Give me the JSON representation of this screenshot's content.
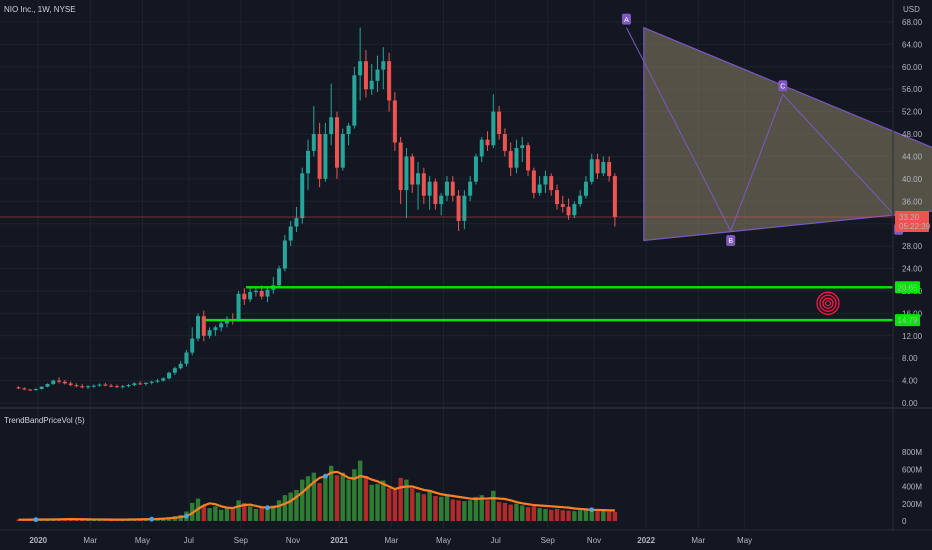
{
  "header": {
    "symbol_title": "NIO Inc., 1W, NYSE",
    "currency": "USD"
  },
  "colors": {
    "background": "#131722",
    "up": "#26a69a",
    "down": "#ef5350",
    "triangle_fill": "#8a8466",
    "triangle_stroke": "#7e57c2",
    "support_line": "#00e600",
    "vol_ma": "#ff7f27",
    "vol_up": "#2e7d32",
    "vol_down": "#b22b2b",
    "marker": "#ff1744"
  },
  "price_axis": {
    "ticks": [
      "68.00",
      "64.00",
      "60.00",
      "56.00",
      "52.00",
      "48.00",
      "44.00",
      "40.00",
      "36.00",
      "32.00",
      "28.00",
      "24.00",
      "20.00",
      "16.00",
      "12.00",
      "8.00",
      "4.00",
      "0.00"
    ],
    "current_price": "33.20",
    "countdown": "05:22:39",
    "current_value": 33.2
  },
  "volume_panel": {
    "title": "TrendBandPriceVol (5)",
    "ticks": [
      "800",
      "600",
      "400",
      "200",
      "0"
    ]
  },
  "time_axis": {
    "labels": [
      "2020",
      "Mar",
      "May",
      "Jul",
      "Sep",
      "Nov",
      "2021",
      "Mar",
      "May",
      "Jul",
      "Sep",
      "Nov",
      "2022",
      "Mar",
      "May"
    ]
  },
  "support_levels": [
    {
      "value": 20.65,
      "label": "20.65"
    },
    {
      "value": 14.79,
      "label": "14.79"
    }
  ],
  "pattern_points": [
    {
      "label": "A",
      "week": 105,
      "value": 66.99
    },
    {
      "label": "B",
      "week": 123,
      "value": 30.7
    },
    {
      "label": "C",
      "week": 132,
      "value": 55.1
    },
    {
      "label": "D",
      "week": 152,
      "value": 32.7
    }
  ],
  "triangle": {
    "apex_week": 105,
    "apex_value": 66.99,
    "bottom_left_value": 29,
    "end_week": 176,
    "end_value": 36.5
  },
  "chart_data": {
    "type": "candlestick",
    "title": "NIO Inc., 1W, NYSE",
    "interval": "1W",
    "ylim": [
      0,
      70
    ],
    "x_start": "2019-12-16",
    "candles": [
      [
        2.8,
        3.0,
        2.5,
        2.6
      ],
      [
        2.6,
        2.8,
        2.3,
        2.4
      ],
      [
        2.4,
        2.5,
        2.2,
        2.3
      ],
      [
        2.3,
        2.6,
        2.2,
        2.5
      ],
      [
        2.5,
        3.0,
        2.4,
        2.9
      ],
      [
        2.9,
        3.5,
        2.8,
        3.4
      ],
      [
        3.4,
        4.2,
        3.2,
        4.0
      ],
      [
        4.0,
        4.6,
        3.5,
        3.8
      ],
      [
        3.8,
        4.1,
        3.3,
        3.5
      ],
      [
        3.5,
        3.8,
        3.0,
        3.2
      ],
      [
        3.2,
        3.5,
        2.8,
        3.0
      ],
      [
        3.0,
        3.4,
        2.6,
        2.8
      ],
      [
        2.8,
        3.2,
        2.5,
        3.0
      ],
      [
        3.0,
        3.3,
        2.7,
        3.1
      ],
      [
        3.1,
        3.5,
        2.9,
        3.3
      ],
      [
        3.3,
        3.6,
        3.0,
        3.1
      ],
      [
        3.1,
        3.4,
        2.8,
        3.0
      ],
      [
        3.0,
        3.3,
        2.7,
        2.9
      ],
      [
        2.9,
        3.2,
        2.6,
        3.0
      ],
      [
        3.0,
        3.4,
        2.8,
        3.2
      ],
      [
        3.2,
        3.7,
        3.0,
        3.5
      ],
      [
        3.5,
        3.9,
        3.2,
        3.4
      ],
      [
        3.4,
        3.7,
        3.1,
        3.6
      ],
      [
        3.6,
        4.0,
        3.3,
        3.8
      ],
      [
        3.8,
        4.3,
        3.6,
        4.0
      ],
      [
        4.0,
        4.6,
        3.8,
        4.4
      ],
      [
        4.4,
        5.6,
        4.2,
        5.4
      ],
      [
        5.4,
        6.5,
        5.0,
        6.2
      ],
      [
        6.2,
        7.5,
        6.0,
        7.0
      ],
      [
        7.0,
        9.5,
        6.5,
        9.0
      ],
      [
        9.0,
        13.5,
        8.5,
        11.5
      ],
      [
        11.5,
        16.0,
        11.0,
        15.5
      ],
      [
        15.5,
        16.5,
        11.0,
        12.0
      ],
      [
        12.0,
        13.5,
        11.5,
        13.0
      ],
      [
        13.0,
        13.8,
        12.0,
        13.5
      ],
      [
        13.5,
        14.5,
        12.8,
        14.2
      ],
      [
        14.2,
        15.5,
        13.5,
        15.0
      ],
      [
        15.0,
        16.0,
        14.0,
        14.8
      ],
      [
        14.8,
        20.0,
        14.5,
        19.5
      ],
      [
        19.5,
        20.5,
        17.5,
        18.5
      ],
      [
        18.5,
        20.5,
        18.0,
        19.8
      ],
      [
        19.8,
        20.8,
        19.0,
        20.0
      ],
      [
        20.0,
        21.0,
        18.5,
        19.0
      ],
      [
        19.0,
        20.5,
        18.0,
        20.2
      ],
      [
        20.2,
        22.5,
        19.5,
        21.0
      ],
      [
        21.0,
        24.5,
        20.5,
        24.0
      ],
      [
        24.0,
        30.0,
        23.5,
        29.0
      ],
      [
        29.0,
        32.5,
        28.0,
        31.5
      ],
      [
        31.5,
        35.0,
        30.5,
        33.0
      ],
      [
        33.0,
        42.0,
        32.0,
        41.0
      ],
      [
        41.0,
        47.0,
        38.0,
        45.0
      ],
      [
        45.0,
        53.0,
        44.0,
        48.0
      ],
      [
        48.0,
        50.0,
        38.5,
        40.0
      ],
      [
        40.0,
        50.0,
        39.5,
        48.0
      ],
      [
        48.0,
        57.0,
        46.0,
        51.0
      ],
      [
        51.0,
        52.0,
        40.0,
        42.0
      ],
      [
        42.0,
        49.0,
        41.5,
        48.0
      ],
      [
        48.0,
        50.0,
        46.0,
        49.5
      ],
      [
        49.5,
        60.0,
        49.0,
        58.5
      ],
      [
        58.5,
        67.0,
        54.0,
        61.0
      ],
      [
        61.0,
        63.0,
        54.5,
        56.0
      ],
      [
        56.0,
        60.5,
        55.0,
        57.5
      ],
      [
        57.5,
        62.0,
        55.5,
        59.5
      ],
      [
        59.5,
        63.5,
        56.0,
        61.0
      ],
      [
        61.0,
        62.5,
        52.0,
        54.0
      ],
      [
        54.0,
        55.5,
        45.0,
        46.5
      ],
      [
        46.5,
        47.5,
        35.5,
        38.0
      ],
      [
        38.0,
        45.5,
        33.0,
        44.0
      ],
      [
        44.0,
        44.5,
        37.5,
        39.0
      ],
      [
        39.0,
        43.0,
        34.5,
        41.0
      ],
      [
        41.0,
        42.0,
        35.5,
        37.0
      ],
      [
        37.0,
        40.5,
        34.5,
        39.5
      ],
      [
        39.5,
        40.0,
        34.5,
        35.5
      ],
      [
        35.5,
        37.5,
        33.5,
        37.0
      ],
      [
        37.0,
        40.5,
        36.0,
        39.5
      ],
      [
        39.5,
        40.5,
        36.0,
        37.0
      ],
      [
        37.0,
        38.0,
        30.7,
        32.5
      ],
      [
        32.5,
        38.0,
        31.0,
        37.0
      ],
      [
        37.0,
        40.5,
        36.0,
        39.5
      ],
      [
        39.5,
        44.5,
        39.0,
        44.0
      ],
      [
        44.0,
        47.5,
        43.0,
        47.0
      ],
      [
        47.0,
        48.5,
        45.0,
        46.0
      ],
      [
        46.0,
        55.1,
        45.5,
        52.0
      ],
      [
        52.0,
        53.0,
        47.0,
        48.0
      ],
      [
        48.0,
        49.0,
        44.0,
        45.0
      ],
      [
        45.0,
        46.5,
        40.5,
        42.0
      ],
      [
        42.0,
        47.0,
        41.0,
        45.5
      ],
      [
        45.5,
        47.5,
        43.0,
        46.0
      ],
      [
        46.0,
        46.5,
        40.5,
        41.5
      ],
      [
        41.5,
        42.0,
        36.5,
        37.5
      ],
      [
        37.5,
        40.5,
        37.0,
        39.0
      ],
      [
        39.0,
        41.5,
        37.5,
        40.5
      ],
      [
        40.5,
        41.0,
        37.0,
        38.0
      ],
      [
        38.0,
        39.0,
        34.5,
        35.5
      ],
      [
        35.5,
        37.0,
        34.0,
        35.0
      ],
      [
        35.0,
        36.5,
        32.7,
        33.5
      ],
      [
        33.5,
        36.0,
        33.0,
        35.5
      ],
      [
        35.5,
        38.0,
        35.0,
        37.0
      ],
      [
        37.0,
        40.5,
        36.5,
        39.5
      ],
      [
        39.5,
        44.5,
        39.0,
        43.5
      ],
      [
        43.5,
        44.5,
        40.0,
        41.0
      ],
      [
        41.0,
        44.0,
        40.5,
        43.0
      ],
      [
        43.0,
        44.0,
        39.5,
        40.5
      ],
      [
        40.5,
        41.0,
        31.5,
        33.2
      ]
    ],
    "volume_millions": [
      18,
      14,
      16,
      15,
      20,
      22,
      30,
      26,
      24,
      20,
      18,
      16,
      15,
      17,
      18,
      16,
      15,
      14,
      16,
      18,
      20,
      22,
      21,
      24,
      30,
      35,
      45,
      58,
      70,
      110,
      210,
      260,
      180,
      150,
      170,
      130,
      150,
      160,
      240,
      210,
      170,
      140,
      160,
      150,
      180,
      240,
      300,
      330,
      360,
      480,
      520,
      560,
      440,
      520,
      640,
      530,
      560,
      480,
      600,
      700,
      520,
      420,
      430,
      470,
      380,
      360,
      500,
      480,
      380,
      330,
      310,
      360,
      290,
      280,
      300,
      250,
      240,
      230,
      240,
      280,
      300,
      240,
      350,
      220,
      210,
      190,
      200,
      180,
      160,
      170,
      150,
      140,
      130,
      140,
      125,
      120,
      115,
      125,
      130,
      140,
      120,
      115,
      110,
      105
    ],
    "volume_ma": [
      15,
      15,
      16,
      16,
      17,
      17,
      18,
      19,
      21,
      22,
      21,
      20,
      19,
      18,
      18,
      17,
      16,
      16,
      16,
      17,
      18,
      19,
      20,
      21,
      24,
      27,
      31,
      37,
      46,
      56,
      90,
      140,
      180,
      205,
      195,
      170,
      155,
      150,
      170,
      185,
      190,
      175,
      160,
      155,
      160,
      175,
      200,
      230,
      280,
      330,
      390,
      450,
      500,
      520,
      560,
      570,
      540,
      500,
      490,
      520,
      510,
      480,
      460,
      430,
      400,
      370,
      390,
      400,
      400,
      380,
      360,
      350,
      330,
      310,
      300,
      290,
      280,
      270,
      260,
      255,
      260,
      260,
      265,
      260,
      255,
      240,
      220,
      205,
      195,
      185,
      180,
      175,
      170,
      165,
      160,
      155,
      145,
      140,
      135,
      130,
      128,
      126,
      124,
      122
    ]
  }
}
